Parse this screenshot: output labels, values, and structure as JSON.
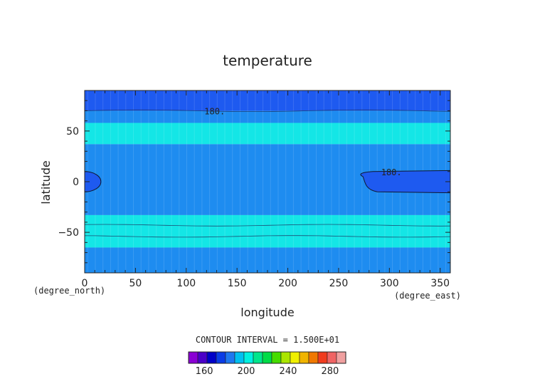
{
  "chart_data": {
    "type": "heatmap",
    "title": "temperature",
    "xlabel": "longitude",
    "ylabel": "latitude",
    "x_unit": "(degree_east)",
    "y_unit": "(degree_north)",
    "xlim": [
      0,
      360
    ],
    "ylim": [
      -90,
      90
    ],
    "x_ticks": [
      0,
      50,
      100,
      150,
      200,
      250,
      300,
      350
    ],
    "y_ticks": [
      -50,
      0,
      50
    ],
    "contour_interval_text": "CONTOUR INTERVAL = 1.500E+01",
    "latitude_bands": [
      {
        "from": 70,
        "to": 90,
        "range": [
          180,
          195
        ]
      },
      {
        "from": 58,
        "to": 70,
        "range": [
          195,
          210
        ]
      },
      {
        "from": 37,
        "to": 58,
        "range": [
          210,
          225
        ]
      },
      {
        "from": -33,
        "to": 37,
        "range": [
          195,
          210
        ]
      },
      {
        "from": -65,
        "to": -33,
        "range": [
          210,
          225
        ]
      },
      {
        "from": -90,
        "to": -65,
        "range": [
          195,
          210
        ]
      }
    ],
    "cold_regions": [
      {
        "lon": [
          0,
          16
        ],
        "lat": [
          -10,
          10
        ],
        "range": [
          180,
          195
        ]
      },
      {
        "lon": [
          272,
          360
        ],
        "lat": [
          -11,
          11
        ],
        "range": [
          180,
          195
        ]
      }
    ],
    "contour_labels": [
      {
        "lon": 128,
        "lat": 70,
        "text": "180."
      },
      {
        "lon": 302,
        "lat": 10,
        "text": "180."
      }
    ],
    "colorbar": {
      "tick_labels": [
        "160",
        "200",
        "240",
        "280"
      ],
      "tick_values": [
        160,
        200,
        240,
        280
      ],
      "min": 145,
      "max": 295,
      "colors": [
        "#8a00d4",
        "#4b00c8",
        "#0000c8",
        "#0a3ce6",
        "#1e78f0",
        "#00c0f0",
        "#00f0e0",
        "#00e68c",
        "#00dc46",
        "#46dc00",
        "#aae600",
        "#f0f000",
        "#f0b400",
        "#f07800",
        "#f03c1e",
        "#f06464",
        "#f0a0a0"
      ]
    },
    "band_colors": {
      "180-195": "#1e5af0",
      "195-210": "#1e8cf0",
      "210-225": "#14e6e6"
    }
  }
}
